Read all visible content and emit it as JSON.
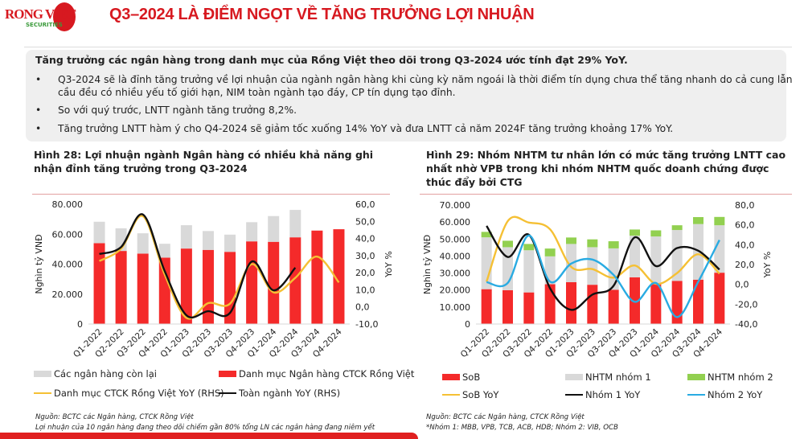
{
  "header": {
    "logo_text": "RONG VIET",
    "logo_sub": "SECURITIES",
    "title": "Q3–2024 LÀ ĐIỂM NGỌT VỀ TĂNG TRƯỞNG LỢI NHUẬN"
  },
  "summary": {
    "heading": "Tăng trưởng các ngân hàng trong danh mục của Rồng Việt theo dõi trong Q3-2024 ước tính đạt 29% YoY.",
    "bullets": [
      "Q3-2024 sẽ là đỉnh tăng trưởng về lợi nhuận của ngành ngân hàng khi cùng kỳ năm ngoái là thời điểm tín dụng chưa thể tăng nhanh do cả cung lẫn cầu đều có nhiều yếu tố giới hạn, NIM toàn ngành tạo đáy, CP tín dụng tạo đỉnh.",
      "So với quý trước, LNTT ngành tăng trưởng 8,2%.",
      "Tăng trưởng LNTT hàm ý cho Q4-2024 sẽ giảm tốc xuống 14% YoY và đưa LNTT cả năm 2024F tăng trưởng khoảng 17% YoY."
    ],
    "bullet_symbol": "•"
  },
  "colors": {
    "brand_red": "#d71920",
    "bar_red": "#f42a2a",
    "gray": "#d9d9d9",
    "green": "#92d050",
    "yellow": "#f5c034",
    "black": "#111111",
    "blue": "#29abe2"
  },
  "chart_data": [
    {
      "type": "bar",
      "title": "Hình 28: Lợi nhuận ngành Ngân hàng có nhiều khả năng ghi nhận đỉnh tăng trưởng trong Q3-2024",
      "ylabel": "Nghìn tỷ VNĐ",
      "y2label": "YoY %",
      "ylim": [
        0,
        80000
      ],
      "y2lim": [
        -10,
        60
      ],
      "yticks": [
        "0",
        "20.000",
        "40.000",
        "60.000",
        "80.000"
      ],
      "y2ticks": [
        "-10,0",
        "0,0",
        "10,0",
        "20,0",
        "30,0",
        "40,0",
        "50,0",
        "60,0"
      ],
      "stacked": true,
      "categories": [
        "Q1-2022",
        "Q2-2022",
        "Q3-2022",
        "Q4-2022",
        "Q1-2023",
        "Q2-2023",
        "Q3-2023",
        "Q4-2023",
        "Q1-2024",
        "Q2-2024",
        "Q3-2024",
        "Q4-2024"
      ],
      "series": [
        {
          "name": "Danh mục Ngân hàng CTCK Rồng Việt",
          "kind": "bar",
          "color": "#f42a2a",
          "values": [
            54000,
            48800,
            47000,
            44300,
            50400,
            49500,
            48200,
            55200,
            54900,
            57900,
            62400,
            63300
          ]
        },
        {
          "name": "Các ngân hàng còn lại",
          "kind": "bar",
          "color": "#d9d9d9",
          "values": [
            14300,
            15100,
            13600,
            9300,
            15600,
            12600,
            11500,
            12800,
            17200,
            18300,
            null,
            null
          ]
        },
        {
          "name": "Danh mục CTCK Rồng Việt YoY (RHS)",
          "kind": "line",
          "axis": "right",
          "color": "#f5c034",
          "values": [
            26.8,
            34,
            53,
            19,
            -6.4,
            2.2,
            1.9,
            25,
            8.5,
            17,
            29.4,
            14.3
          ]
        },
        {
          "name": "Toàn ngành YoY (RHS)",
          "kind": "line",
          "axis": "right",
          "color": "#111111",
          "values": [
            30.9,
            35,
            54,
            21,
            -4.9,
            -2.5,
            -3.5,
            26.5,
            9.7,
            22.9,
            null,
            null
          ]
        }
      ],
      "legend_order": [
        1,
        0,
        2,
        3
      ],
      "legend": "bottom",
      "grid": false,
      "footnotes": [
        "Nguồn: BCTC các Ngân hàng, CTCK Rồng Việt",
        "Lợi nhuận của 10 ngân hàng đang theo dõi chiếm gần 80% tổng LN các ngân hàng đang niêm yết"
      ]
    },
    {
      "type": "bar",
      "title": "Hình 29: Nhóm NHTM tư nhân lớn có mức tăng trưởng LNTT cao nhất nhờ VPB trong khi nhóm NHTM quốc doanh chứng được thúc đẩy bởi CTG",
      "ylabel": "Nghìn tỷ VNĐ",
      "y2label": "YoY %",
      "ylim": [
        0,
        70000
      ],
      "y2lim": [
        -40,
        80
      ],
      "yticks": [
        "0",
        "10.000",
        "20.000",
        "30.000",
        "40.000",
        "50.000",
        "60.000",
        "70.000"
      ],
      "y2ticks": [
        "-40,0",
        "-20,0",
        "0,0",
        "20,0",
        "40,0",
        "60,0",
        "80,0"
      ],
      "stacked": true,
      "categories": [
        "Q1-2022",
        "Q2-2022",
        "Q3-2022",
        "Q4-2022",
        "Q1-2023",
        "Q2-2023",
        "Q3-2023",
        "Q4-2023",
        "Q1-2024",
        "Q2-2024",
        "Q3-2024",
        "Q4-2024"
      ],
      "series": [
        {
          "name": "SoB",
          "kind": "bar",
          "color": "#f42a2a",
          "values": [
            20500,
            19900,
            18600,
            23400,
            24600,
            23100,
            20100,
            27500,
            23400,
            25400,
            26100,
            30200
          ]
        },
        {
          "name": "NHTM nhóm 1",
          "kind": "bar",
          "color": "#d9d9d9",
          "values": [
            30500,
            25300,
            24800,
            16400,
            22500,
            22100,
            24400,
            24500,
            28100,
            29900,
            32700,
            27900
          ]
        },
        {
          "name": "NHTM nhóm 2",
          "kind": "bar",
          "color": "#92d050",
          "values": [
            3200,
            3800,
            3700,
            4600,
            3800,
            4600,
            4200,
            3600,
            3600,
            2800,
            4100,
            4900
          ]
        },
        {
          "name": "SoB YoY",
          "kind": "line",
          "axis": "right",
          "color": "#f5c034",
          "values": [
            2.7,
            63.7,
            62.3,
            55.5,
            17.6,
            15.4,
            6.8,
            19,
            0.5,
            11.4,
            30.4,
            10.8
          ]
        },
        {
          "name": "Nhóm 1 YoY",
          "kind": "line",
          "axis": "right",
          "color": "#111111",
          "values": [
            59,
            27.6,
            50,
            -4,
            -25.7,
            -10.3,
            -1.4,
            47.4,
            18.4,
            36.6,
            33.9,
            14.9
          ]
        },
        {
          "name": "Nhóm 2 YoY",
          "kind": "line",
          "axis": "right",
          "color": "#29abe2",
          "values": [
            2.2,
            1.4,
            49.3,
            2.7,
            21,
            25,
            9.5,
            -17.6,
            1.4,
            -33,
            2.7,
            44.7
          ]
        }
      ],
      "legend_order": [
        0,
        1,
        2,
        3,
        4,
        5
      ],
      "legend": "bottom",
      "grid": false,
      "footnotes": [
        "Nguồn: BCTC các Ngân hàng, CTCK Rồng Việt",
        "*Nhóm 1: MBB, VPB, TCB, ACB, HDB; Nhóm 2: VIB, OCB"
      ]
    }
  ]
}
